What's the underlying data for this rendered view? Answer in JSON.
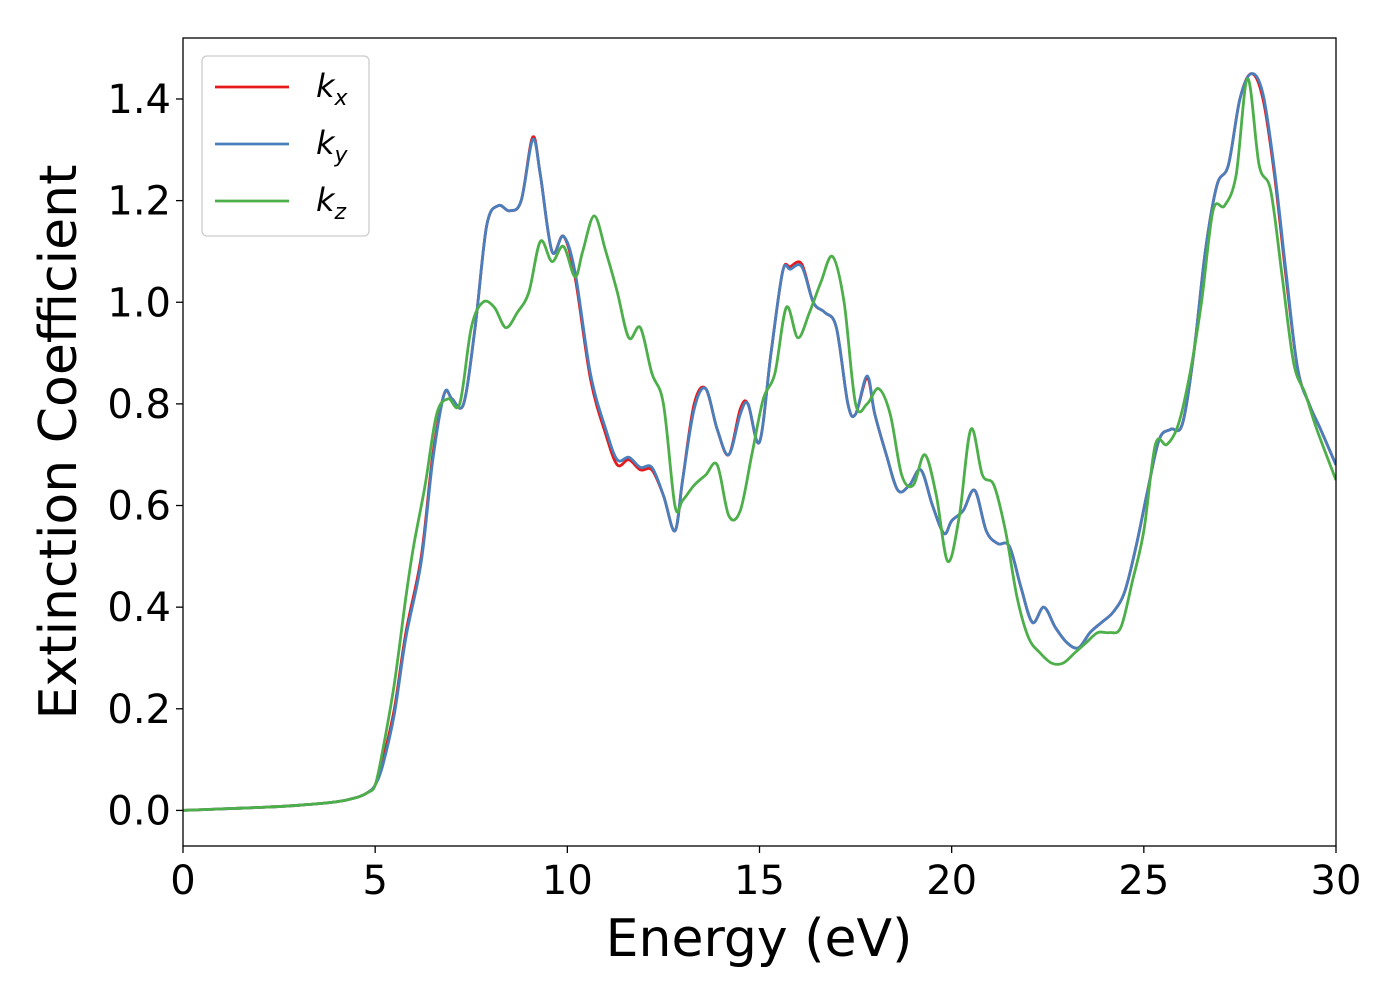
{
  "chart_data": {
    "type": "line",
    "xlabel": "Energy (eV)",
    "ylabel": "Extinction Coefficient",
    "xlim": [
      0,
      30
    ],
    "ylim": [
      -0.07,
      1.52
    ],
    "xticks": [
      0,
      5,
      10,
      15,
      20,
      25,
      30
    ],
    "xtick_labels": [
      "0",
      "5",
      "10",
      "15",
      "20",
      "25",
      "30"
    ],
    "yticks": [
      0.0,
      0.2,
      0.4,
      0.6,
      0.8,
      1.0,
      1.2,
      1.4
    ],
    "ytick_labels": [
      "0.0",
      "0.2",
      "0.4",
      "0.6",
      "0.8",
      "1.0",
      "1.2",
      "1.4"
    ],
    "grid": false,
    "legend_position": "top-left",
    "series": [
      {
        "name": "k_x",
        "label_main": "k",
        "label_sub": "x",
        "color": "#e41a1c",
        "x": [
          0,
          1,
          2,
          3,
          4,
          4.5,
          4.8,
          5.0,
          5.2,
          5.5,
          5.8,
          6.2,
          6.5,
          6.8,
          7.0,
          7.3,
          7.6,
          7.9,
          8.2,
          8.5,
          8.8,
          9.1,
          9.3,
          9.6,
          9.9,
          10.2,
          10.6,
          11.0,
          11.3,
          11.6,
          11.9,
          12.2,
          12.5,
          12.8,
          13.0,
          13.3,
          13.6,
          13.9,
          14.2,
          14.5,
          14.7,
          15.0,
          15.3,
          15.6,
          15.8,
          16.1,
          16.4,
          16.7,
          17.0,
          17.3,
          17.5,
          17.8,
          18.0,
          18.3,
          18.6,
          18.9,
          19.2,
          19.5,
          19.8,
          20.0,
          20.3,
          20.6,
          20.9,
          21.2,
          21.5,
          21.8,
          22.1,
          22.4,
          22.7,
          23.0,
          23.3,
          23.6,
          23.9,
          24.2,
          24.5,
          24.8,
          25.1,
          25.4,
          25.7,
          26.0,
          26.3,
          26.6,
          26.9,
          27.2,
          27.5,
          27.8,
          28.1,
          28.4,
          28.7,
          29.0,
          29.3,
          29.6,
          30.0
        ],
        "y": [
          0.0,
          0.003,
          0.006,
          0.01,
          0.017,
          0.025,
          0.035,
          0.05,
          0.1,
          0.2,
          0.35,
          0.5,
          0.7,
          0.82,
          0.81,
          0.8,
          0.95,
          1.15,
          1.19,
          1.18,
          1.2,
          1.325,
          1.25,
          1.1,
          1.13,
          1.05,
          0.85,
          0.74,
          0.68,
          0.69,
          0.67,
          0.67,
          0.62,
          0.55,
          0.65,
          0.8,
          0.83,
          0.75,
          0.7,
          0.79,
          0.8,
          0.725,
          0.9,
          1.06,
          1.07,
          1.075,
          1.0,
          0.98,
          0.95,
          0.8,
          0.78,
          0.85,
          0.78,
          0.7,
          0.63,
          0.64,
          0.67,
          0.6,
          0.545,
          0.57,
          0.59,
          0.63,
          0.55,
          0.525,
          0.52,
          0.44,
          0.37,
          0.4,
          0.36,
          0.33,
          0.32,
          0.35,
          0.37,
          0.39,
          0.43,
          0.52,
          0.63,
          0.73,
          0.75,
          0.76,
          0.9,
          1.1,
          1.23,
          1.27,
          1.4,
          1.45,
          1.4,
          1.25,
          1.05,
          0.87,
          0.8,
          0.75,
          0.68
        ]
      },
      {
        "name": "k_y",
        "label_main": "k",
        "label_sub": "y",
        "color": "#4a7fbd",
        "x": [
          0,
          1,
          2,
          3,
          4,
          4.5,
          4.8,
          5.0,
          5.2,
          5.5,
          5.8,
          6.2,
          6.5,
          6.8,
          7.0,
          7.3,
          7.6,
          7.9,
          8.2,
          8.5,
          8.8,
          9.1,
          9.3,
          9.6,
          9.9,
          10.2,
          10.6,
          11.0,
          11.3,
          11.6,
          11.9,
          12.2,
          12.5,
          12.8,
          13.0,
          13.3,
          13.6,
          13.9,
          14.2,
          14.5,
          14.7,
          15.0,
          15.3,
          15.6,
          15.8,
          16.1,
          16.4,
          16.7,
          17.0,
          17.3,
          17.5,
          17.8,
          18.0,
          18.3,
          18.6,
          18.9,
          19.2,
          19.5,
          19.8,
          20.0,
          20.3,
          20.6,
          20.9,
          21.2,
          21.5,
          21.8,
          22.1,
          22.4,
          22.7,
          23.0,
          23.3,
          23.6,
          23.9,
          24.2,
          24.5,
          24.8,
          25.1,
          25.4,
          25.7,
          26.0,
          26.3,
          26.6,
          26.9,
          27.2,
          27.5,
          27.8,
          28.1,
          28.4,
          28.7,
          29.0,
          29.3,
          29.6,
          30.0
        ],
        "y": [
          0.0,
          0.003,
          0.006,
          0.01,
          0.017,
          0.025,
          0.035,
          0.05,
          0.09,
          0.19,
          0.34,
          0.49,
          0.69,
          0.82,
          0.81,
          0.8,
          0.95,
          1.15,
          1.19,
          1.18,
          1.2,
          1.32,
          1.25,
          1.1,
          1.13,
          1.06,
          0.86,
          0.75,
          0.69,
          0.695,
          0.675,
          0.675,
          0.62,
          0.55,
          0.65,
          0.79,
          0.83,
          0.75,
          0.7,
          0.78,
          0.8,
          0.725,
          0.9,
          1.06,
          1.065,
          1.07,
          1.0,
          0.98,
          0.95,
          0.8,
          0.78,
          0.855,
          0.78,
          0.7,
          0.63,
          0.64,
          0.67,
          0.6,
          0.545,
          0.57,
          0.59,
          0.63,
          0.55,
          0.525,
          0.52,
          0.44,
          0.37,
          0.4,
          0.36,
          0.33,
          0.32,
          0.35,
          0.37,
          0.39,
          0.43,
          0.52,
          0.63,
          0.73,
          0.75,
          0.76,
          0.9,
          1.1,
          1.23,
          1.27,
          1.4,
          1.45,
          1.41,
          1.26,
          1.06,
          0.87,
          0.8,
          0.75,
          0.68
        ]
      },
      {
        "name": "k_z",
        "label_main": "k",
        "label_sub": "z",
        "color": "#4daf4a",
        "x": [
          0,
          1,
          2,
          3,
          4,
          4.5,
          4.8,
          5.0,
          5.2,
          5.5,
          5.8,
          6.0,
          6.3,
          6.6,
          6.9,
          7.2,
          7.5,
          7.8,
          8.1,
          8.4,
          8.7,
          9.0,
          9.3,
          9.6,
          9.9,
          10.2,
          10.4,
          10.7,
          11.0,
          11.3,
          11.6,
          11.9,
          12.2,
          12.5,
          12.8,
          13.0,
          13.3,
          13.6,
          13.9,
          14.2,
          14.5,
          14.8,
          15.1,
          15.4,
          15.7,
          16.0,
          16.3,
          16.6,
          16.9,
          17.2,
          17.5,
          17.8,
          18.1,
          18.4,
          18.7,
          19.0,
          19.3,
          19.6,
          19.9,
          20.2,
          20.5,
          20.8,
          21.1,
          21.4,
          21.7,
          22.0,
          22.3,
          22.6,
          22.9,
          23.2,
          23.5,
          23.8,
          24.1,
          24.4,
          24.7,
          25.0,
          25.3,
          25.6,
          25.9,
          26.2,
          26.5,
          26.8,
          27.1,
          27.4,
          27.7,
          28.0,
          28.3,
          28.6,
          28.9,
          29.2,
          29.5,
          30.0
        ],
        "y": [
          0.0,
          0.003,
          0.006,
          0.01,
          0.017,
          0.025,
          0.035,
          0.05,
          0.12,
          0.25,
          0.42,
          0.52,
          0.64,
          0.78,
          0.81,
          0.8,
          0.95,
          1.0,
          0.99,
          0.95,
          0.98,
          1.02,
          1.12,
          1.08,
          1.11,
          1.05,
          1.1,
          1.17,
          1.1,
          1.02,
          0.93,
          0.95,
          0.86,
          0.8,
          0.6,
          0.61,
          0.64,
          0.66,
          0.68,
          0.58,
          0.59,
          0.7,
          0.81,
          0.86,
          0.99,
          0.93,
          0.98,
          1.04,
          1.09,
          1.0,
          0.8,
          0.8,
          0.83,
          0.78,
          0.66,
          0.64,
          0.7,
          0.62,
          0.49,
          0.58,
          0.75,
          0.66,
          0.64,
          0.55,
          0.42,
          0.34,
          0.31,
          0.29,
          0.29,
          0.31,
          0.33,
          0.35,
          0.35,
          0.36,
          0.45,
          0.55,
          0.72,
          0.72,
          0.76,
          0.86,
          1.0,
          1.18,
          1.19,
          1.25,
          1.44,
          1.27,
          1.22,
          1.05,
          0.88,
          0.82,
          0.75,
          0.65
        ]
      }
    ]
  }
}
